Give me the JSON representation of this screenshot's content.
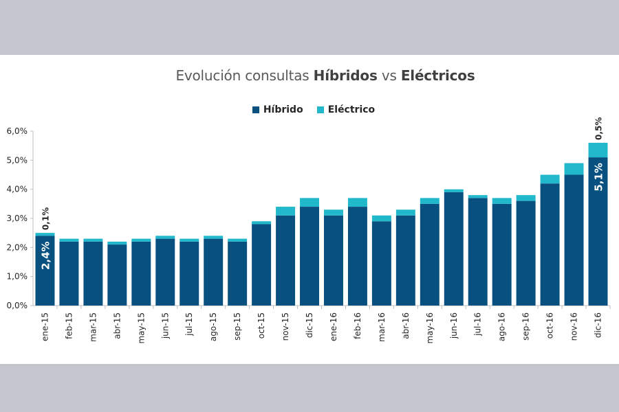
{
  "title": {
    "part1": "Evolución consultas ",
    "bold1": "Híbridos",
    "part2": " vs ",
    "bold2": "Eléctricos"
  },
  "colors": {
    "hibrido": "#08507f",
    "electrico": "#22b8cc",
    "axis": "#bfbfbf",
    "text": "#262626",
    "label_white": "#ffffff"
  },
  "chart_data": {
    "type": "bar",
    "stacked": true,
    "categories": [
      "ene-15",
      "feb-15",
      "mar-15",
      "abr-15",
      "may-15",
      "jun-15",
      "jul-15",
      "ago-15",
      "sep-15",
      "oct-15",
      "nov-15",
      "dic-15",
      "ene-16",
      "feb-16",
      "mar-16",
      "abr-16",
      "may-16",
      "jun-16",
      "jul-16",
      "ago-16",
      "sep-16",
      "oct-16",
      "nov-16",
      "dic-16"
    ],
    "series": [
      {
        "name": "Híbrido",
        "values": [
          2.4,
          2.2,
          2.2,
          2.1,
          2.2,
          2.3,
          2.2,
          2.3,
          2.2,
          2.8,
          3.1,
          3.4,
          3.1,
          3.4,
          2.9,
          3.1,
          3.5,
          3.9,
          3.7,
          3.5,
          3.6,
          4.2,
          4.5,
          5.1
        ]
      },
      {
        "name": "Eléctrico",
        "values": [
          0.1,
          0.1,
          0.1,
          0.1,
          0.1,
          0.1,
          0.1,
          0.1,
          0.1,
          0.1,
          0.3,
          0.3,
          0.2,
          0.3,
          0.2,
          0.2,
          0.2,
          0.1,
          0.1,
          0.2,
          0.2,
          0.3,
          0.4,
          0.5
        ]
      }
    ],
    "ylim": [
      0,
      6
    ],
    "yticks": [
      "0,0%",
      "1,0%",
      "2,0%",
      "3,0%",
      "4,0%",
      "5,0%",
      "6,0%"
    ],
    "data_labels": [
      {
        "category": "ene-15",
        "hibrido": "2,4%",
        "electrico": "0,1%"
      },
      {
        "category": "dic-16",
        "hibrido": "5,1%",
        "electrico": "0,5%"
      }
    ],
    "legend_position": "top",
    "grid": false
  }
}
